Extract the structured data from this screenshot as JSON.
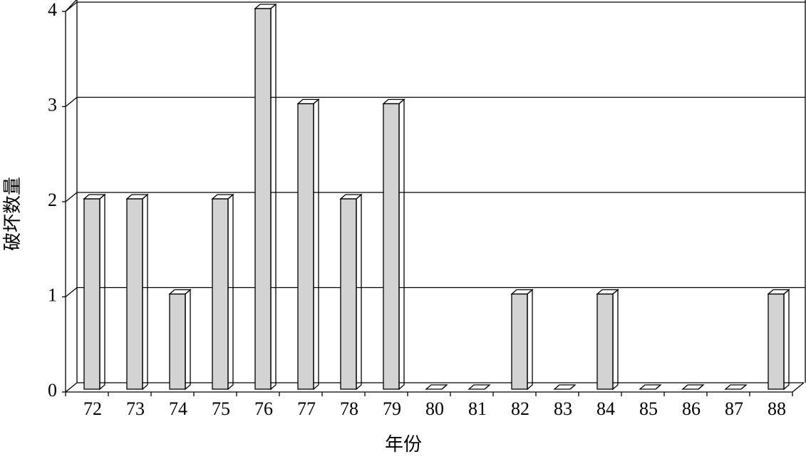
{
  "chart_data": {
    "type": "bar3d",
    "x_label": "年份",
    "y_label": "破坏数量",
    "categories": [
      "72",
      "73",
      "74",
      "75",
      "76",
      "77",
      "78",
      "79",
      "80",
      "81",
      "82",
      "83",
      "84",
      "85",
      "86",
      "87",
      "88"
    ],
    "values": [
      2,
      2,
      1,
      2,
      4,
      3,
      2,
      3,
      0,
      0,
      1,
      0,
      1,
      0,
      0,
      0,
      1
    ],
    "color": "#d3d3d3",
    "ylim": [
      0,
      4
    ],
    "yticks": [
      0,
      1,
      2,
      3,
      4
    ],
    "grid": true
  }
}
